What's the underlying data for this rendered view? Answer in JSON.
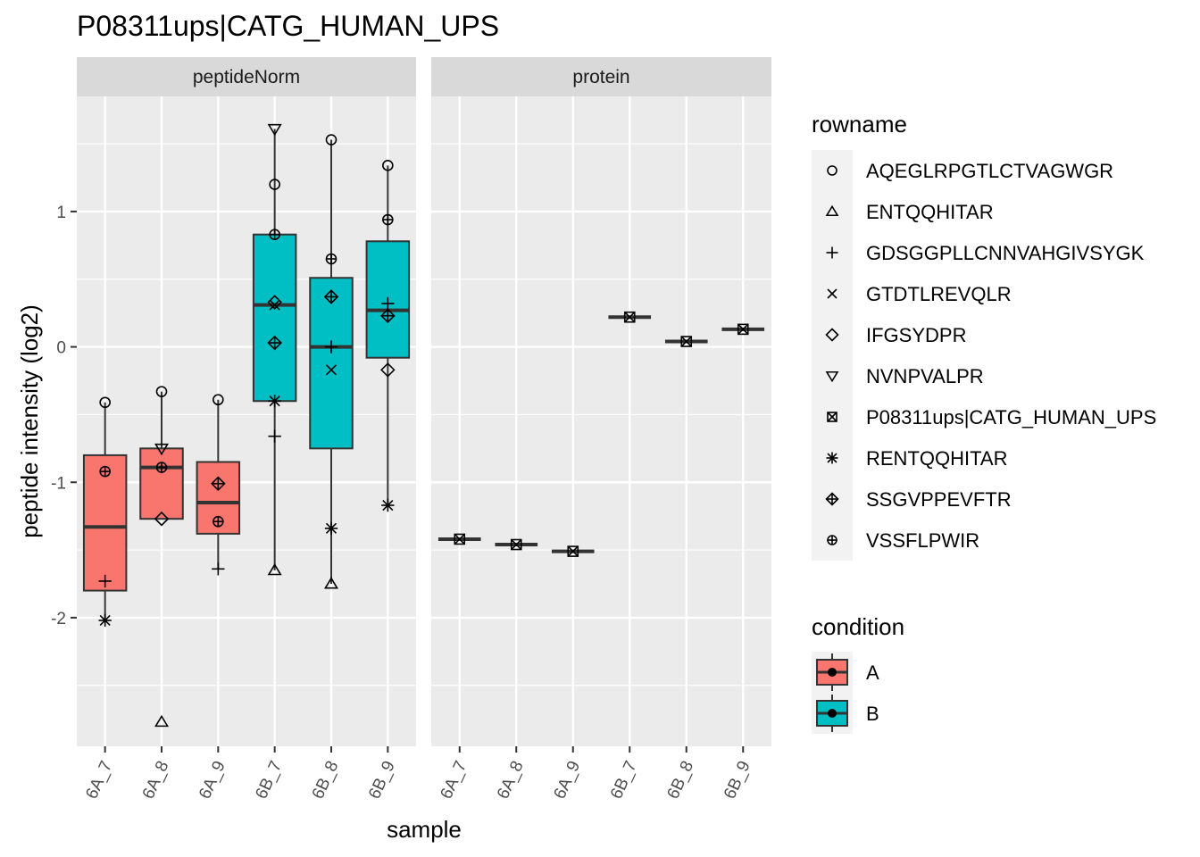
{
  "chart_data": {
    "type": "boxplot",
    "title": "P08311ups|CATG_HUMAN_UPS",
    "xlabel": "sample",
    "ylabel": "peptide intensity (log2)",
    "y_ticks": [
      -2,
      -1,
      0,
      1
    ],
    "ylim": [
      -2.95,
      1.85
    ],
    "grid": true,
    "categories": [
      "6A_7",
      "6A_8",
      "6A_9",
      "6B_7",
      "6B_8",
      "6B_9"
    ],
    "panels": [
      {
        "name": "peptideNorm",
        "boxes": [
          {
            "sample": "6A_7",
            "condition": "A",
            "q1": -1.8,
            "median": -1.33,
            "q3": -0.8,
            "whisker_low": -2.02,
            "whisker_high": -0.41
          },
          {
            "sample": "6A_8",
            "condition": "A",
            "q1": -1.27,
            "median": -0.89,
            "q3": -0.75,
            "whisker_low": -1.27,
            "whisker_high": -0.33
          },
          {
            "sample": "6A_9",
            "condition": "A",
            "q1": -1.38,
            "median": -1.15,
            "q3": -0.85,
            "whisker_low": -1.64,
            "whisker_high": -0.39
          },
          {
            "sample": "6B_7",
            "condition": "B",
            "q1": -0.4,
            "median": 0.31,
            "q3": 0.83,
            "whisker_low": -1.65,
            "whisker_high": 1.61
          },
          {
            "sample": "6B_8",
            "condition": "B",
            "q1": -0.75,
            "median": 0.0,
            "q3": 0.51,
            "whisker_low": -1.75,
            "whisker_high": 1.53
          },
          {
            "sample": "6B_9",
            "condition": "B",
            "q1": -0.08,
            "median": 0.27,
            "q3": 0.78,
            "whisker_low": -1.17,
            "whisker_high": 1.34
          }
        ],
        "points": [
          {
            "sample": "6A_7",
            "rowname": "AQEGLRPGTLCTVAGWGR",
            "value": -0.41
          },
          {
            "sample": "6A_7",
            "rowname": "VSSFLPWIR",
            "value": -0.92
          },
          {
            "sample": "6A_7",
            "rowname": "GDSGGPLLCNNVAHGIVSYGK",
            "value": -1.73
          },
          {
            "sample": "6A_7",
            "rowname": "RENTQQHITAR",
            "value": -2.02
          },
          {
            "sample": "6A_8",
            "rowname": "AQEGLRPGTLCTVAGWGR",
            "value": -0.33
          },
          {
            "sample": "6A_8",
            "rowname": "NVNPVALPR",
            "value": -0.75
          },
          {
            "sample": "6A_8",
            "rowname": "VSSFLPWIR",
            "value": -0.89
          },
          {
            "sample": "6A_8",
            "rowname": "IFGSYDPR",
            "value": -1.27
          },
          {
            "sample": "6A_8",
            "rowname": "ENTQQHITAR",
            "value": -2.77
          },
          {
            "sample": "6A_9",
            "rowname": "AQEGLRPGTLCTVAGWGR",
            "value": -0.39
          },
          {
            "sample": "6A_9",
            "rowname": "SSGVPPEVFTR",
            "value": -1.01
          },
          {
            "sample": "6A_9",
            "rowname": "VSSFLPWIR",
            "value": -1.29
          },
          {
            "sample": "6A_9",
            "rowname": "GDSGGPLLCNNVAHGIVSYGK",
            "value": -1.64
          },
          {
            "sample": "6B_7",
            "rowname": "NVNPVALPR",
            "value": 1.61
          },
          {
            "sample": "6B_7",
            "rowname": "AQEGLRPGTLCTVAGWGR",
            "value": 1.2
          },
          {
            "sample": "6B_7",
            "rowname": "VSSFLPWIR",
            "value": 0.83
          },
          {
            "sample": "6B_7",
            "rowname": "IFGSYDPR",
            "value": 0.33
          },
          {
            "sample": "6B_7",
            "rowname": "GTDTLREVQLR",
            "value": 0.31
          },
          {
            "sample": "6B_7",
            "rowname": "SSGVPPEVFTR",
            "value": 0.03
          },
          {
            "sample": "6B_7",
            "rowname": "RENTQQHITAR",
            "value": -0.4
          },
          {
            "sample": "6B_7",
            "rowname": "GDSGGPLLCNNVAHGIVSYGK",
            "value": -0.66
          },
          {
            "sample": "6B_7",
            "rowname": "ENTQQHITAR",
            "value": -1.65
          },
          {
            "sample": "6B_8",
            "rowname": "AQEGLRPGTLCTVAGWGR",
            "value": 1.53
          },
          {
            "sample": "6B_8",
            "rowname": "VSSFLPWIR",
            "value": 0.65
          },
          {
            "sample": "6B_8",
            "rowname": "SSGVPPEVFTR",
            "value": 0.37
          },
          {
            "sample": "6B_8",
            "rowname": "GDSGGPLLCNNVAHGIVSYGK",
            "value": 0.0
          },
          {
            "sample": "6B_8",
            "rowname": "GTDTLREVQLR",
            "value": -0.17
          },
          {
            "sample": "6B_8",
            "rowname": "RENTQQHITAR",
            "value": -1.34
          },
          {
            "sample": "6B_8",
            "rowname": "ENTQQHITAR",
            "value": -1.75
          },
          {
            "sample": "6B_9",
            "rowname": "AQEGLRPGTLCTVAGWGR",
            "value": 1.34
          },
          {
            "sample": "6B_9",
            "rowname": "VSSFLPWIR",
            "value": 0.94
          },
          {
            "sample": "6B_9",
            "rowname": "GDSGGPLLCNNVAHGIVSYGK",
            "value": 0.32
          },
          {
            "sample": "6B_9",
            "rowname": "SSGVPPEVFTR",
            "value": 0.23
          },
          {
            "sample": "6B_9",
            "rowname": "IFGSYDPR",
            "value": -0.17
          },
          {
            "sample": "6B_9",
            "rowname": "RENTQQHITAR",
            "value": -1.17
          }
        ]
      },
      {
        "name": "protein",
        "boxes": [
          {
            "sample": "6A_7",
            "condition": "A",
            "q1": -1.42,
            "median": -1.42,
            "q3": -1.42,
            "whisker_low": -1.42,
            "whisker_high": -1.42
          },
          {
            "sample": "6A_8",
            "condition": "A",
            "q1": -1.46,
            "median": -1.46,
            "q3": -1.46,
            "whisker_low": -1.46,
            "whisker_high": -1.46
          },
          {
            "sample": "6A_9",
            "condition": "A",
            "q1": -1.51,
            "median": -1.51,
            "q3": -1.51,
            "whisker_low": -1.51,
            "whisker_high": -1.51
          },
          {
            "sample": "6B_7",
            "condition": "B",
            "q1": 0.22,
            "median": 0.22,
            "q3": 0.22,
            "whisker_low": 0.22,
            "whisker_high": 0.22
          },
          {
            "sample": "6B_8",
            "condition": "B",
            "q1": 0.04,
            "median": 0.04,
            "q3": 0.04,
            "whisker_low": 0.04,
            "whisker_high": 0.04
          },
          {
            "sample": "6B_9",
            "condition": "B",
            "q1": 0.13,
            "median": 0.13,
            "q3": 0.13,
            "whisker_low": 0.13,
            "whisker_high": 0.13
          }
        ],
        "points": [
          {
            "sample": "6A_7",
            "rowname": "P08311ups|CATG_HUMAN_UPS",
            "value": -1.42
          },
          {
            "sample": "6A_8",
            "rowname": "P08311ups|CATG_HUMAN_UPS",
            "value": -1.46
          },
          {
            "sample": "6A_9",
            "rowname": "P08311ups|CATG_HUMAN_UPS",
            "value": -1.51
          },
          {
            "sample": "6B_7",
            "rowname": "P08311ups|CATG_HUMAN_UPS",
            "value": 0.22
          },
          {
            "sample": "6B_8",
            "rowname": "P08311ups|CATG_HUMAN_UPS",
            "value": 0.04
          },
          {
            "sample": "6B_9",
            "rowname": "P08311ups|CATG_HUMAN_UPS",
            "value": 0.13
          }
        ]
      }
    ],
    "legends": {
      "rowname": {
        "title": "rowname",
        "entries": [
          {
            "label": "AQEGLRPGTLCTVAGWGR",
            "shape": "circle-open"
          },
          {
            "label": "ENTQQHITAR",
            "shape": "triangle-open"
          },
          {
            "label": "GDSGGPLLCNNVAHGIVSYGK",
            "shape": "plus"
          },
          {
            "label": "GTDTLREVQLR",
            "shape": "cross"
          },
          {
            "label": "IFGSYDPR",
            "shape": "diamond-open"
          },
          {
            "label": "NVNPVALPR",
            "shape": "triangle-down-open"
          },
          {
            "label": "P08311ups|CATG_HUMAN_UPS",
            "shape": "square-cross"
          },
          {
            "label": "RENTQQHITAR",
            "shape": "asterisk"
          },
          {
            "label": "SSGVPPEVFTR",
            "shape": "diamond-plus"
          },
          {
            "label": "VSSFLPWIR",
            "shape": "circle-plus"
          }
        ]
      },
      "condition": {
        "title": "condition",
        "entries": [
          {
            "label": "A",
            "color": "#F8766D"
          },
          {
            "label": "B",
            "color": "#00BFC4"
          }
        ]
      }
    },
    "colors": {
      "A": "#F8766D",
      "B": "#00BFC4",
      "panel_bg": "#EBEBEB",
      "strip_bg": "#D9D9D9",
      "grid": "#FFFFFF"
    }
  }
}
